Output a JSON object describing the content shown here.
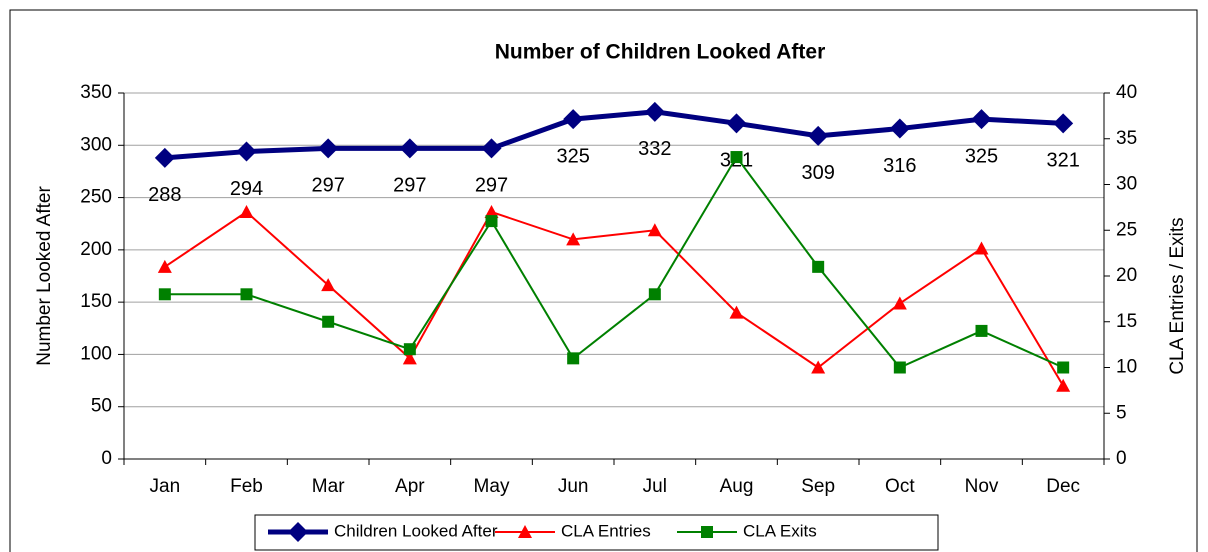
{
  "chart_data": {
    "type": "line",
    "title": "Number of Children Looked After",
    "y_label": "Number Looked After",
    "y2_label": "CLA Entries / Exits",
    "categories": [
      "Jan",
      "Feb",
      "Mar",
      "Apr",
      "May",
      "Jun",
      "Jul",
      "Aug",
      "Sep",
      "Oct",
      "Nov",
      "Dec"
    ],
    "series": [
      {
        "name": "Children Looked After",
        "color": "#000080",
        "marker": "diamond",
        "data_labels": true,
        "axis": "y",
        "values": [
          288,
          294,
          297,
          297,
          297,
          325,
          332,
          321,
          309,
          316,
          325,
          321
        ]
      },
      {
        "name": "CLA Entries",
        "color": "#ff0000",
        "marker": "triangle",
        "axis": "y2",
        "values": [
          21,
          27,
          19,
          11,
          27,
          24,
          25,
          16,
          10,
          17,
          23,
          8
        ]
      },
      {
        "name": "CLA Exits",
        "color": "#008000",
        "marker": "square",
        "axis": "y2",
        "values": [
          18,
          18,
          15,
          12,
          26,
          11,
          18,
          33,
          21,
          10,
          14,
          10
        ]
      }
    ],
    "ylim": [
      0,
      350
    ],
    "yticks": [
      0,
      50,
      100,
      150,
      200,
      250,
      300,
      350
    ],
    "y2lim": [
      0,
      40
    ],
    "y2ticks": [
      0,
      5,
      10,
      15,
      20,
      25,
      30,
      35,
      40
    ],
    "grid": true,
    "legend": "bottom"
  }
}
